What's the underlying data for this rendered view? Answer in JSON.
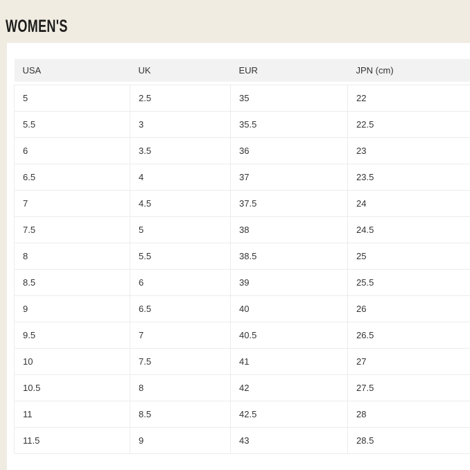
{
  "page_title": "WOMEN'S",
  "table": {
    "headers": [
      "USA",
      "UK",
      "EUR",
      "JPN (cm)"
    ],
    "rows": [
      [
        "5",
        "2.5",
        "35",
        "22"
      ],
      [
        "5.5",
        "3",
        "35.5",
        "22.5"
      ],
      [
        "6",
        "3.5",
        "36",
        "23"
      ],
      [
        "6.5",
        "4",
        "37",
        "23.5"
      ],
      [
        "7",
        "4.5",
        "37.5",
        "24"
      ],
      [
        "7.5",
        "5",
        "38",
        "24.5"
      ],
      [
        "8",
        "5.5",
        "38.5",
        "25"
      ],
      [
        "8.5",
        "6",
        "39",
        "25.5"
      ],
      [
        "9",
        "6.5",
        "40",
        "26"
      ],
      [
        "9.5",
        "7",
        "40.5",
        "26.5"
      ],
      [
        "10",
        "7.5",
        "41",
        "27"
      ],
      [
        "10.5",
        "8",
        "42",
        "27.5"
      ],
      [
        "11",
        "8.5",
        "42.5",
        "28"
      ],
      [
        "11.5",
        "9",
        "43",
        "28.5"
      ]
    ]
  },
  "colors": {
    "page_background": "#f0ece2",
    "card_background": "#ffffff",
    "header_row_background": "#f2f2f2",
    "cell_border": "#ececec",
    "body_text": "#333333",
    "title_text": "#1d1d1b"
  }
}
